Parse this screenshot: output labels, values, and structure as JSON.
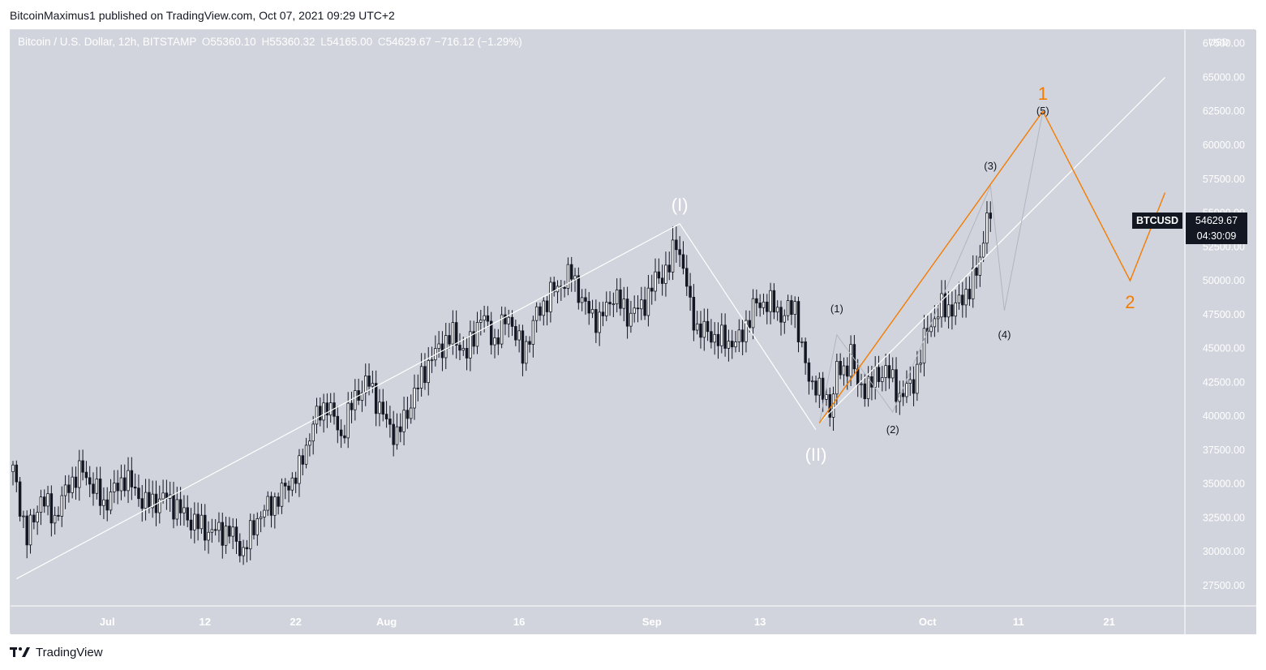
{
  "header": {
    "publisher_line": "BitcoinMaximus1 published on TradingView.com, Oct 07, 2021 09:29 UTC+2"
  },
  "legend": {
    "symbol": "Bitcoin / U.S. Dollar, 12h, BITSTAMP",
    "o_label": "O",
    "o_value": "55360.10",
    "h_label": "H",
    "h_value": "55360.32",
    "l_label": "L",
    "l_value": "54165.00",
    "c_label": "C",
    "c_value": "54629.67",
    "change": "−716.12 (−1.29%)"
  },
  "price_tag": {
    "symbol": "BTCUSD",
    "value": "54629.67",
    "countdown": "04:30:09"
  },
  "currency": "USD",
  "footer": {
    "brand": "TradingView"
  },
  "colors": {
    "background": "#d1d4dc",
    "up_candle": "#ffffff",
    "down_candle": "#131722",
    "wave_lines": "#ffffff",
    "orange": "#f57c00",
    "projection_grey": "#b2b5be"
  },
  "chart_data": {
    "type": "candlestick",
    "title": "Bitcoin / U.S. Dollar, 12h, BITSTAMP",
    "x_ticks": [
      "Jul",
      "12",
      "22",
      "Aug",
      "16",
      "Sep",
      "13",
      "Oct",
      "11",
      "21"
    ],
    "y_ticks": [
      27500,
      30000,
      32500,
      35000,
      37500,
      40000,
      42500,
      45000,
      47500,
      50000,
      52500,
      55000,
      57500,
      60000,
      62500,
      65000,
      67500
    ],
    "ylim": [
      26000,
      68500
    ],
    "candle_anchors": [
      [
        0,
        36000
      ],
      [
        4,
        31000
      ],
      [
        8,
        34000
      ],
      [
        12,
        32500
      ],
      [
        16,
        35000
      ],
      [
        20,
        36000
      ],
      [
        26,
        33500
      ],
      [
        32,
        35500
      ],
      [
        38,
        33500
      ],
      [
        44,
        34000
      ],
      [
        50,
        32500
      ],
      [
        56,
        31500
      ],
      [
        62,
        31500
      ],
      [
        66,
        30000
      ],
      [
        70,
        32500
      ],
      [
        76,
        34000
      ],
      [
        82,
        36000
      ],
      [
        86,
        39500
      ],
      [
        90,
        41000
      ],
      [
        94,
        38500
      ],
      [
        98,
        41500
      ],
      [
        102,
        42500
      ],
      [
        106,
        40000
      ],
      [
        110,
        38500
      ],
      [
        114,
        41000
      ],
      [
        118,
        43500
      ],
      [
        122,
        45000
      ],
      [
        126,
        46000
      ],
      [
        130,
        44500
      ],
      [
        134,
        47500
      ],
      [
        138,
        45500
      ],
      [
        142,
        47500
      ],
      [
        146,
        44500
      ],
      [
        150,
        47500
      ],
      [
        154,
        49000
      ],
      [
        160,
        50500
      ],
      [
        164,
        48000
      ],
      [
        168,
        47000
      ],
      [
        172,
        49000
      ],
      [
        176,
        47500
      ],
      [
        180,
        48000
      ],
      [
        184,
        50000
      ],
      [
        188,
        51000
      ],
      [
        190,
        53000
      ],
      [
        192,
        51000
      ],
      [
        194,
        48000
      ],
      [
        196,
        46500
      ],
      [
        200,
        46000
      ],
      [
        204,
        45500
      ],
      [
        208,
        45500
      ],
      [
        212,
        48000
      ],
      [
        216,
        48500
      ],
      [
        220,
        47500
      ],
      [
        224,
        48000
      ],
      [
        226,
        45000
      ],
      [
        228,
        42500
      ],
      [
        230,
        42500
      ],
      [
        232,
        41500
      ],
      [
        234,
        40500
      ],
      [
        236,
        43500
      ],
      [
        238,
        43000
      ],
      [
        240,
        45000
      ],
      [
        242,
        42000
      ],
      [
        246,
        42500
      ],
      [
        250,
        43500
      ],
      [
        254,
        41500
      ],
      [
        258,
        42500
      ],
      [
        262,
        46500
      ],
      [
        266,
        48000
      ],
      [
        270,
        48000
      ],
      [
        274,
        49500
      ],
      [
        276,
        50500
      ],
      [
        278,
        53000
      ],
      [
        279,
        55500
      ],
      [
        280,
        54600
      ]
    ],
    "waves": {
      "primary": [
        {
          "label": "(I)",
          "x": 191,
          "y": 54200
        },
        {
          "label": "(II)",
          "x": 230,
          "y": 39000
        }
      ],
      "primary_start": {
        "x": 1,
        "y": 28000
      },
      "channel": [
        {
          "x": 231,
          "y": 39500
        },
        {
          "x": 330,
          "y": 65000
        }
      ],
      "minor": [
        {
          "label": "(1)",
          "x": 236,
          "y": 46000
        },
        {
          "label": "(2)",
          "x": 252,
          "y": 40300
        },
        {
          "label": "(3)",
          "x": 280,
          "y": 57000
        },
        {
          "label": "(4)",
          "x": 284,
          "y": 47800
        },
        {
          "label": "(5)",
          "x": 295,
          "y": 62500
        }
      ],
      "intermediate": [
        {
          "label": "1",
          "x": 295,
          "y": 62500
        },
        {
          "label": "2",
          "x": 320,
          "y": 50000
        }
      ],
      "orange_path": [
        {
          "x": 231,
          "y": 39500
        },
        {
          "x": 295,
          "y": 62500
        },
        {
          "x": 320,
          "y": 50000
        },
        {
          "x": 330,
          "y": 56500
        }
      ]
    }
  }
}
